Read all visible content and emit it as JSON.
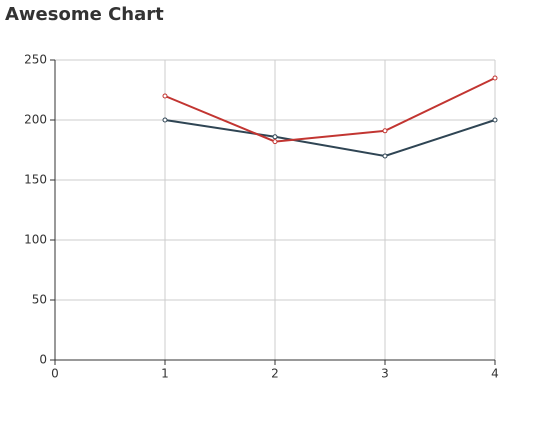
{
  "chart_data": {
    "type": "line",
    "title": "Awesome Chart",
    "x": [
      1,
      2,
      3,
      4
    ],
    "series": [
      {
        "color": "#2f4554",
        "values": [
          200,
          186,
          170,
          200
        ]
      },
      {
        "color": "#c23531",
        "values": [
          220,
          182,
          191,
          235
        ]
      }
    ],
    "xlim": [
      0,
      4
    ],
    "xticks": [
      0,
      1,
      2,
      3,
      4
    ],
    "ylim": [
      0,
      250
    ],
    "yticks": [
      0,
      50,
      100,
      150,
      200,
      250
    ],
    "grid": true
  }
}
